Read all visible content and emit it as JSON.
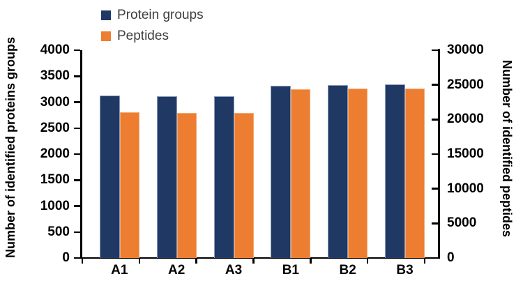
{
  "legend": {
    "items": [
      {
        "label": "Protein groups"
      },
      {
        "label": "Peptides"
      }
    ]
  },
  "chart_data": {
    "type": "bar",
    "categories": [
      "A1",
      "A2",
      "A3",
      "B1",
      "B2",
      "B3"
    ],
    "series": [
      {
        "name": "Protein groups",
        "axis": "left",
        "color": "#1f3864",
        "values": [
          3130,
          3110,
          3120,
          3315,
          3330,
          3340
        ]
      },
      {
        "name": "Peptides",
        "axis": "right",
        "color": "#ed7d31",
        "values": [
          21050,
          20950,
          20950,
          24350,
          24430,
          24430
        ]
      }
    ],
    "left_axis": {
      "title": "Number of identified proteins groups",
      "ticks": [
        4000,
        3500,
        3000,
        2500,
        2000,
        1500,
        1000,
        500,
        0
      ],
      "lim": [
        0,
        4000
      ]
    },
    "right_axis": {
      "title": "Number of identified peptides",
      "ticks": [
        30000,
        25000,
        20000,
        15000,
        10000,
        5000,
        0
      ],
      "lim": [
        0,
        30000
      ]
    },
    "grid": false,
    "legend_position": "top-left",
    "axis_color": "#000000"
  }
}
